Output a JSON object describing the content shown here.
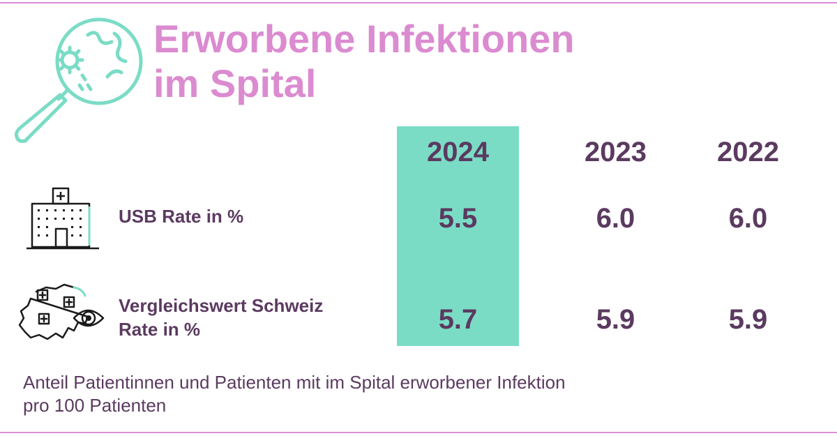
{
  "title": {
    "line1": "Erworbene Infektionen",
    "line2": "im Spital"
  },
  "colors": {
    "title": "#db8bd0",
    "text": "#5b3a60",
    "highlight": "#7bdcc6",
    "rule": "#d98ed6",
    "icon_accent": "#7bdcc6"
  },
  "icons": {
    "header": "magnifier-bacteria-icon",
    "row1": "hospital-building-icon",
    "row2": "switzerland-map-eye-icon"
  },
  "chart_data": {
    "type": "table",
    "columns": [
      "2024",
      "2023",
      "2022"
    ],
    "highlight_column": "2024",
    "rows": [
      {
        "label_lines": [
          "USB Rate in %"
        ],
        "values": [
          "5.5",
          "6.0",
          "6.0"
        ]
      },
      {
        "label_lines": [
          "Vergleichswert Schweiz",
          "Rate in %"
        ],
        "values": [
          "5.7",
          "5.9",
          "5.9"
        ]
      }
    ]
  },
  "footnote": {
    "line1": "Anteil Patientinnen und Patienten mit im Spital erworbener Infektion",
    "line2": "pro 100 Patienten"
  }
}
